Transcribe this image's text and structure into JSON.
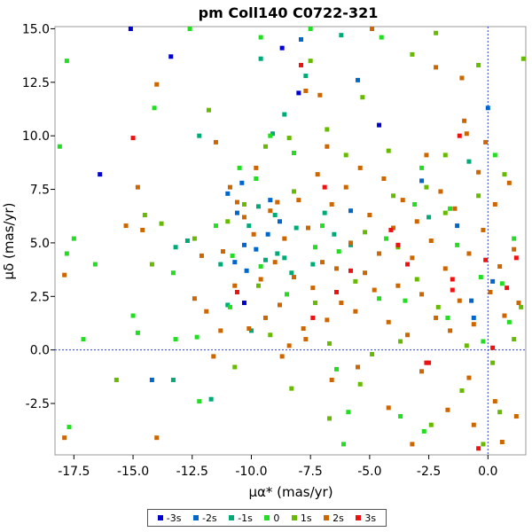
{
  "chart_data": {
    "type": "scatter",
    "title": "pm Coll140  C0722-321",
    "xlabel": "μα* (mas/yr)",
    "ylabel": "μδ (mas/yr)",
    "xlim": [
      -18.3,
      1.6
    ],
    "ylim": [
      -4.9,
      15.1
    ],
    "xticks": [
      -17.5,
      -15.0,
      -12.5,
      -10.0,
      -7.5,
      -5.0,
      -2.5,
      0.0
    ],
    "yticks": [
      -2.5,
      0.0,
      2.5,
      5.0,
      7.5,
      10.0,
      12.5,
      15.0
    ],
    "grid": false,
    "legend_position": "bottom",
    "reference_lines": {
      "x": 0.0,
      "y": 0.0
    },
    "series": [
      {
        "name": "-3s",
        "color": "#0000cc",
        "points": [
          [
            -15.1,
            15.0
          ],
          [
            -13.4,
            13.7
          ],
          [
            -16.4,
            8.2
          ],
          [
            -8.7,
            14.1
          ],
          [
            -8.0,
            12.0
          ],
          [
            -4.6,
            10.5
          ],
          [
            -10.3,
            2.2
          ]
        ]
      },
      {
        "name": "-2s",
        "color": "#0066cc",
        "points": [
          [
            -7.9,
            14.5
          ],
          [
            -10.4,
            7.8
          ],
          [
            -10.6,
            6.4
          ],
          [
            -9.8,
            4.7
          ],
          [
            -10.2,
            3.7
          ],
          [
            -9.3,
            5.4
          ],
          [
            -8.8,
            6.0
          ],
          [
            -10.3,
            4.9
          ],
          [
            -5.5,
            12.6
          ],
          [
            -5.8,
            6.5
          ],
          [
            -14.2,
            -1.4
          ],
          [
            -10.7,
            4.1
          ],
          [
            -2.8,
            7.9
          ],
          [
            -1.3,
            5.8
          ],
          [
            0.0,
            11.3
          ],
          [
            -0.7,
            2.3
          ],
          [
            -9.2,
            7.0
          ],
          [
            -0.6,
            1.5
          ],
          [
            -11.0,
            7.3
          ],
          [
            0.2,
            3.2
          ]
        ]
      },
      {
        "name": "-1s",
        "color": "#00aa77",
        "points": [
          [
            -9.6,
            13.6
          ],
          [
            -9.1,
            10.1
          ],
          [
            -6.2,
            14.7
          ],
          [
            -7.7,
            12.8
          ],
          [
            -8.6,
            11.0
          ],
          [
            -12.2,
            10.0
          ],
          [
            -13.2,
            4.8
          ],
          [
            -9.4,
            4.2
          ],
          [
            -8.6,
            4.3
          ],
          [
            -7.4,
            4.0
          ],
          [
            -6.9,
            6.4
          ],
          [
            -8.1,
            5.7
          ],
          [
            -10.1,
            5.8
          ],
          [
            -8.3,
            3.6
          ],
          [
            -11.3,
            4.0
          ],
          [
            -12.7,
            5.1
          ],
          [
            -9.0,
            6.3
          ],
          [
            -6.5,
            5.4
          ],
          [
            -5.8,
            4.9
          ],
          [
            -11.0,
            2.1
          ],
          [
            -10.0,
            0.9
          ],
          [
            -8.9,
            4.5
          ],
          [
            -2.5,
            6.2
          ],
          [
            -13.3,
            -1.4
          ],
          [
            -11.7,
            -2.3
          ],
          [
            -0.8,
            8.8
          ],
          [
            -9.7,
            6.7
          ]
        ]
      },
      {
        "name": "0",
        "color": "#22dd22",
        "points": [
          [
            -17.8,
            13.5
          ],
          [
            -14.1,
            11.3
          ],
          [
            -18.1,
            9.5
          ],
          [
            -9.6,
            14.6
          ],
          [
            -7.5,
            15.0
          ],
          [
            -4.5,
            14.6
          ],
          [
            -12.6,
            15.0
          ],
          [
            -17.5,
            5.2
          ],
          [
            -17.8,
            4.5
          ],
          [
            -16.6,
            4.0
          ],
          [
            -13.3,
            3.6
          ],
          [
            -15.0,
            1.6
          ],
          [
            -17.1,
            0.5
          ],
          [
            -12.3,
            0.6
          ],
          [
            -10.9,
            2.0
          ],
          [
            -11.5,
            5.8
          ],
          [
            -9.8,
            8.0
          ],
          [
            -9.2,
            10.0
          ],
          [
            -10.5,
            8.5
          ],
          [
            -8.2,
            9.2
          ],
          [
            -7.0,
            5.8
          ],
          [
            -6.3,
            4.6
          ],
          [
            -4.3,
            5.2
          ],
          [
            -3.1,
            6.8
          ],
          [
            -3.5,
            2.3
          ],
          [
            -2.8,
            8.5
          ],
          [
            0.3,
            9.1
          ],
          [
            -1.6,
            6.6
          ],
          [
            -1.3,
            4.9
          ],
          [
            -0.3,
            3.4
          ],
          [
            0.6,
            3.1
          ],
          [
            0.9,
            1.3
          ],
          [
            -0.2,
            0.4
          ],
          [
            -6.4,
            -0.9
          ],
          [
            -5.9,
            -2.9
          ],
          [
            -3.7,
            -3.1
          ],
          [
            -2.7,
            -3.8
          ],
          [
            -6.1,
            -4.4
          ],
          [
            -12.2,
            -2.4
          ],
          [
            -13.2,
            0.5
          ],
          [
            -17.7,
            -3.6
          ],
          [
            -7.3,
            4.8
          ],
          [
            -8.5,
            2.6
          ],
          [
            -4.6,
            2.4
          ],
          [
            -1.7,
            1.5
          ],
          [
            -14.8,
            0.8
          ],
          [
            -9.6,
            3.9
          ],
          [
            -10.8,
            4.4
          ],
          [
            1.1,
            5.2
          ]
        ]
      },
      {
        "name": "1s",
        "color": "#66bb00",
        "points": [
          [
            -11.8,
            11.2
          ],
          [
            -9.4,
            9.5
          ],
          [
            -6.8,
            10.3
          ],
          [
            -7.5,
            13.5
          ],
          [
            -5.3,
            11.8
          ],
          [
            -3.2,
            13.8
          ],
          [
            -2.2,
            14.8
          ],
          [
            -0.4,
            13.3
          ],
          [
            1.5,
            13.6
          ],
          [
            -8.4,
            9.9
          ],
          [
            -14.5,
            6.3
          ],
          [
            -13.8,
            5.9
          ],
          [
            -14.2,
            4.0
          ],
          [
            -12.4,
            5.2
          ],
          [
            -11.0,
            6.0
          ],
          [
            -6.0,
            9.1
          ],
          [
            -4.2,
            9.3
          ],
          [
            -2.6,
            7.6
          ],
          [
            -3.8,
            4.8
          ],
          [
            -1.8,
            6.4
          ],
          [
            -0.4,
            7.2
          ],
          [
            0.7,
            8.2
          ],
          [
            -5.6,
            3.2
          ],
          [
            -3.0,
            3.3
          ],
          [
            -2.1,
            2.0
          ],
          [
            0.2,
            -0.6
          ],
          [
            -1.1,
            -1.9
          ],
          [
            -4.9,
            -0.2
          ],
          [
            -5.4,
            -1.6
          ],
          [
            -6.7,
            -3.2
          ],
          [
            -9.2,
            0.7
          ],
          [
            -10.7,
            -0.8
          ],
          [
            -8.3,
            -1.8
          ],
          [
            -2.4,
            -3.5
          ],
          [
            -0.2,
            -4.4
          ],
          [
            0.5,
            -2.9
          ],
          [
            -7.3,
            2.2
          ],
          [
            -6.7,
            0.3
          ],
          [
            -3.7,
            0.4
          ],
          [
            -15.7,
            -1.4
          ],
          [
            -9.7,
            3.0
          ],
          [
            -10.3,
            6.8
          ],
          [
            -5.2,
            5.5
          ],
          [
            -4.0,
            7.2
          ],
          [
            -8.2,
            7.4
          ],
          [
            1.4,
            2.0
          ],
          [
            1.1,
            0.5
          ],
          [
            -0.9,
            0.2
          ],
          [
            -1.8,
            9.1
          ]
        ]
      },
      {
        "name": "2s",
        "color": "#cc6600",
        "points": [
          [
            -17.9,
            3.5
          ],
          [
            -17.9,
            -4.1
          ],
          [
            -14.0,
            12.4
          ],
          [
            -14.8,
            7.6
          ],
          [
            -15.3,
            5.8
          ],
          [
            -14.6,
            5.6
          ],
          [
            -14.0,
            -4.1
          ],
          [
            -12.4,
            2.4
          ],
          [
            -12.1,
            4.4
          ],
          [
            -11.9,
            1.8
          ],
          [
            -11.5,
            9.7
          ],
          [
            -11.3,
            0.9
          ],
          [
            -11.2,
            4.6
          ],
          [
            -10.9,
            7.6
          ],
          [
            -10.7,
            3.0
          ],
          [
            -10.6,
            6.9
          ],
          [
            -10.3,
            6.2
          ],
          [
            -10.1,
            1.0
          ],
          [
            -9.8,
            8.5
          ],
          [
            -9.6,
            3.3
          ],
          [
            -9.4,
            1.5
          ],
          [
            -9.2,
            6.5
          ],
          [
            -9.0,
            4.1
          ],
          [
            -8.8,
            2.1
          ],
          [
            -8.6,
            5.2
          ],
          [
            -8.4,
            0.2
          ],
          [
            -8.2,
            3.4
          ],
          [
            -8.0,
            7.0
          ],
          [
            -7.8,
            1.0
          ],
          [
            -7.6,
            5.7
          ],
          [
            -7.4,
            2.9
          ],
          [
            -7.2,
            8.2
          ],
          [
            -7.0,
            4.1
          ],
          [
            -6.8,
            1.4
          ],
          [
            -6.6,
            6.8
          ],
          [
            -6.4,
            3.8
          ],
          [
            -6.2,
            2.2
          ],
          [
            -6.0,
            7.6
          ],
          [
            -5.8,
            5.0
          ],
          [
            -5.6,
            1.8
          ],
          [
            -5.4,
            8.5
          ],
          [
            -5.2,
            3.6
          ],
          [
            -5.0,
            6.3
          ],
          [
            -4.8,
            2.8
          ],
          [
            -4.6,
            4.5
          ],
          [
            -4.4,
            8.0
          ],
          [
            -4.2,
            1.3
          ],
          [
            -4.0,
            5.7
          ],
          [
            -3.8,
            3.0
          ],
          [
            -3.6,
            7.0
          ],
          [
            -3.4,
            0.7
          ],
          [
            -3.2,
            4.3
          ],
          [
            -3.0,
            6.0
          ],
          [
            -2.8,
            2.6
          ],
          [
            -2.6,
            9.1
          ],
          [
            -2.4,
            5.1
          ],
          [
            -2.2,
            1.5
          ],
          [
            -2.0,
            7.4
          ],
          [
            -1.8,
            3.8
          ],
          [
            -1.6,
            0.9
          ],
          [
            -1.4,
            6.6
          ],
          [
            -1.2,
            2.3
          ],
          [
            -1.0,
            10.7
          ],
          [
            -0.8,
            4.5
          ],
          [
            -0.6,
            1.2
          ],
          [
            -0.4,
            8.3
          ],
          [
            -0.2,
            5.6
          ],
          [
            0.1,
            2.7
          ],
          [
            0.3,
            6.8
          ],
          [
            0.5,
            3.9
          ],
          [
            0.7,
            1.6
          ],
          [
            0.9,
            7.8
          ],
          [
            1.1,
            4.7
          ],
          [
            1.3,
            2.2
          ],
          [
            -4.9,
            15.0
          ],
          [
            -2.2,
            13.2
          ],
          [
            -1.1,
            12.7
          ],
          [
            -0.9,
            10.1
          ],
          [
            -0.1,
            9.7
          ],
          [
            -7.1,
            11.9
          ],
          [
            -7.7,
            12.1
          ],
          [
            -4.2,
            -2.7
          ],
          [
            -2.8,
            -1.0
          ],
          [
            -1.7,
            -2.8
          ],
          [
            -0.6,
            -3.5
          ],
          [
            0.3,
            -2.4
          ],
          [
            1.2,
            -3.1
          ],
          [
            -5.5,
            -0.8
          ],
          [
            -6.6,
            -1.4
          ],
          [
            -7.7,
            0.5
          ],
          [
            -8.7,
            -0.3
          ],
          [
            -11.6,
            -0.3
          ],
          [
            -3.2,
            -4.4
          ],
          [
            -0.8,
            -1.3
          ],
          [
            0.6,
            -4.3
          ],
          [
            -9.9,
            5.4
          ],
          [
            -8.9,
            6.9
          ],
          [
            -6.8,
            9.5
          ]
        ]
      },
      {
        "name": "3s",
        "color": "#ee1111",
        "points": [
          [
            -15.0,
            9.9
          ],
          [
            -7.9,
            13.3
          ],
          [
            -10.6,
            2.7
          ],
          [
            -7.4,
            1.5
          ],
          [
            -6.4,
            2.7
          ],
          [
            -5.8,
            3.7
          ],
          [
            -6.9,
            7.6
          ],
          [
            -4.1,
            5.6
          ],
          [
            -3.8,
            4.9
          ],
          [
            -3.4,
            4.0
          ],
          [
            -1.5,
            3.3
          ],
          [
            -1.2,
            10.0
          ],
          [
            -0.1,
            4.2
          ],
          [
            0.2,
            0.1
          ],
          [
            -2.6,
            -0.6
          ],
          [
            -2.5,
            -0.6
          ],
          [
            0.8,
            2.9
          ],
          [
            -1.5,
            2.8
          ],
          [
            -0.4,
            -4.6
          ],
          [
            1.2,
            4.3
          ]
        ]
      }
    ]
  }
}
